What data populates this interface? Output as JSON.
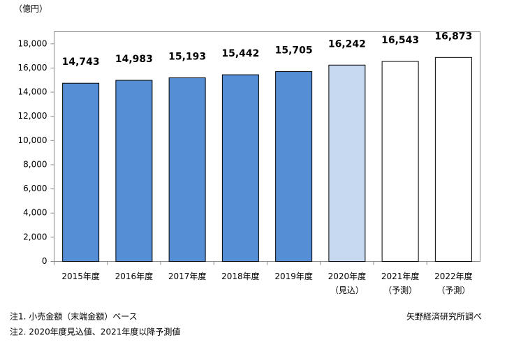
{
  "chart_data": {
    "type": "bar",
    "unit_label": "（億円）",
    "categories": [
      "2015年度",
      "2016年度",
      "2017年度",
      "2018年度",
      "2019年度",
      "2020年度",
      "2021年度",
      "2022年度"
    ],
    "category_notes": [
      null,
      null,
      null,
      null,
      null,
      "（見込）",
      "（予測）",
      "（予測）"
    ],
    "values": [
      14743,
      14983,
      15193,
      15442,
      15705,
      16242,
      16543,
      16873
    ],
    "value_labels": [
      "14,743",
      "14,983",
      "15,193",
      "15,442",
      "15,705",
      "16,242",
      "16,543",
      "16,873"
    ],
    "colors": [
      "#558ed5",
      "#558ed5",
      "#558ed5",
      "#558ed5",
      "#558ed5",
      "#c6d9f1",
      "#ffffff",
      "#ffffff"
    ],
    "ylim": [
      0,
      19000
    ],
    "yticks": [
      0,
      {
        "value": 2000,
        "label": "2,000"
      },
      {
        "value": 4000,
        "label": "4,000"
      },
      {
        "value": 6000,
        "label": "6,000"
      },
      {
        "value": 8000,
        "label": "8,000"
      },
      {
        "value": 10000,
        "label": "10,000"
      },
      {
        "value": 12000,
        "label": "12,000"
      },
      {
        "value": 14000,
        "label": "14,000"
      },
      {
        "value": 16000,
        "label": "16,000"
      },
      {
        "value": 18000,
        "label": "18,000"
      }
    ],
    "grid": false,
    "notes": [
      "注1. 小売金額（末端金額）ベース",
      "注2. 2020年度見込値、2021年度以降予測値"
    ],
    "source": "矢野経済研究所調べ"
  }
}
